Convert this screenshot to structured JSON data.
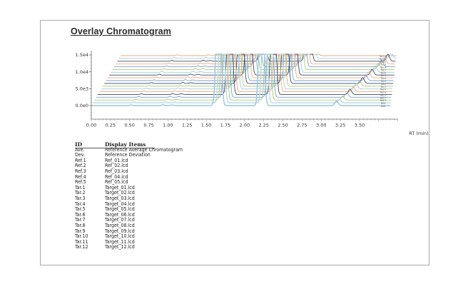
{
  "title": "Overlay Chromatogram",
  "chart_data": {
    "type": "line",
    "title": "Overlay Chromatogram",
    "xlabel": "RT (min)",
    "ylabel": "",
    "xlim": [
      0,
      4.0
    ],
    "ylim": [
      -2500,
      15000
    ],
    "x_ticks": [
      "0.00",
      "0.25",
      "0.50",
      "0.75",
      "1.00",
      "1.25",
      "1.50",
      "1.75",
      "2.00",
      "2.25",
      "2.50",
      "2.75",
      "3.00",
      "3.25",
      "3.50"
    ],
    "y_ticks": [
      "1.5e4",
      "1.0e4",
      "5.0e3",
      "0.0e0"
    ],
    "layout": "stacked-offset overlay (waterfall), each trace offset right and up",
    "grid": false,
    "series": [
      {
        "name": "Ave.",
        "color": "#9cc4dc",
        "peaks": [
          [
            1.66,
            "off-scale"
          ],
          [
            2.22,
            "off-scale"
          ],
          [
            3.2,
            1400
          ]
        ]
      },
      {
        "name": "Dev.",
        "color": "#b8d8e8",
        "peaks": [
          [
            1.68,
            "off-scale"
          ],
          [
            2.24,
            "off-scale"
          ],
          [
            3.22,
            900
          ]
        ]
      },
      {
        "name": "Ref.1",
        "color": "#a8c870",
        "peaks": [
          [
            1.69,
            "off-scale"
          ],
          [
            2.26,
            "off-scale"
          ],
          [
            3.24,
            1200
          ]
        ]
      },
      {
        "name": "Ref.2",
        "color": "#7aa0d0",
        "peaks": [
          [
            1.7,
            "off-scale"
          ],
          [
            2.27,
            "off-scale"
          ],
          [
            3.27,
            1300
          ]
        ]
      },
      {
        "name": "Ref.3",
        "color": "#3a4a6a",
        "peaks": [
          [
            1.72,
            "off-scale"
          ],
          [
            2.29,
            "off-scale"
          ],
          [
            3.29,
            1500
          ]
        ]
      },
      {
        "name": "Ref.4",
        "color": "#f0a878",
        "peaks": [
          [
            1.73,
            "off-scale"
          ],
          [
            2.31,
            "off-scale"
          ],
          [
            3.31,
            1400
          ]
        ]
      },
      {
        "name": "Ref.5",
        "color": "#a0c8e0",
        "peaks": [
          [
            1.75,
            "off-scale"
          ],
          [
            2.32,
            "off-scale"
          ],
          [
            3.33,
            1600
          ]
        ]
      },
      {
        "name": "Tar.1",
        "color": "#a8c870",
        "peaks": [
          [
            1.76,
            "off-scale"
          ],
          [
            2.34,
            "off-scale"
          ],
          [
            3.35,
            1500
          ]
        ]
      },
      {
        "name": "Tar.2",
        "color": "#3a4a6a",
        "peaks": [
          [
            1.78,
            "off-scale"
          ],
          [
            2.36,
            "off-scale"
          ],
          [
            3.37,
            1700
          ]
        ]
      },
      {
        "name": "Tar.3",
        "color": "#7aa0d0",
        "peaks": [
          [
            1.79,
            "off-scale"
          ],
          [
            2.37,
            "off-scale"
          ],
          [
            3.39,
            1600
          ]
        ]
      },
      {
        "name": "Tar.4",
        "color": "#f0a878",
        "peaks": [
          [
            1.81,
            "off-scale"
          ],
          [
            2.39,
            "off-scale"
          ],
          [
            3.41,
            1800
          ]
        ]
      },
      {
        "name": "Tar.5",
        "color": "#3a4a6a",
        "peaks": [
          [
            1.82,
            "off-scale"
          ],
          [
            2.41,
            "off-scale"
          ],
          [
            3.43,
            1700
          ]
        ]
      },
      {
        "name": "Tar.6",
        "color": "#a0c8e0",
        "peaks": [
          [
            1.84,
            "off-scale"
          ],
          [
            2.42,
            "off-scale"
          ],
          [
            3.45,
            1900
          ]
        ]
      },
      {
        "name": "Tar.7",
        "color": "#a8c870",
        "peaks": [
          [
            1.85,
            "off-scale"
          ],
          [
            2.44,
            "off-scale"
          ],
          [
            3.47,
            1800
          ]
        ]
      },
      {
        "name": "Tar.8",
        "color": "#7aa0d0",
        "peaks": [
          [
            1.87,
            "off-scale"
          ],
          [
            2.46,
            "off-scale"
          ],
          [
            3.49,
            2000
          ]
        ]
      },
      {
        "name": "Tar.9",
        "color": "#f0a878",
        "peaks": [
          [
            1.88,
            "off-scale"
          ],
          [
            2.47,
            "off-scale"
          ],
          [
            3.51,
            1900
          ]
        ]
      },
      {
        "name": "Tar.10",
        "color": "#3a4a6a",
        "peaks": [
          [
            1.9,
            "off-scale"
          ],
          [
            2.49,
            "off-scale"
          ],
          [
            3.53,
            2100
          ]
        ]
      },
      {
        "name": "Tar.11",
        "color": "#a0c8e0",
        "peaks": [
          [
            1.91,
            "off-scale"
          ],
          [
            2.51,
            "off-scale"
          ],
          [
            3.55,
            2000
          ]
        ]
      },
      {
        "name": "Tar.12",
        "color": "#f0a878",
        "peaks": [
          [
            1.93,
            "off-scale"
          ],
          [
            2.52,
            "off-scale"
          ],
          [
            3.76,
            2200
          ]
        ]
      }
    ]
  },
  "axis": {
    "x_label": "RT (min)",
    "x_ticks": [
      "0.00",
      "0.25",
      "0.50",
      "0.75",
      "1.00",
      "1.25",
      "1.50",
      "1.75",
      "2.00",
      "2.25",
      "2.50",
      "2.75",
      "3.00",
      "3.25",
      "3.50"
    ],
    "y_ticks": [
      "1.5e4",
      "1.0e4",
      "5.0e3",
      "0.0e0"
    ]
  },
  "table": {
    "headers": {
      "id": "ID",
      "items": "Display Items"
    },
    "rows": [
      {
        "id": "Ave.",
        "item": "Reference Average Chromatogram"
      },
      {
        "id": "Dev.",
        "item": "Reference Deviation"
      },
      {
        "id": "Ref.1",
        "item": "Ref_01.lcd"
      },
      {
        "id": "Ref.2",
        "item": "Ref_02.lcd"
      },
      {
        "id": "Ref.3",
        "item": "Ref_03.lcd"
      },
      {
        "id": "Ref.4",
        "item": "Ref_04.lcd"
      },
      {
        "id": "Ref.5",
        "item": "Ref_05.lcd"
      },
      {
        "id": "Tar.1",
        "item": "Target_01.lcd"
      },
      {
        "id": "Tar.2",
        "item": "Target_02.lcd"
      },
      {
        "id": "Tar.3",
        "item": "Target_03.lcd"
      },
      {
        "id": "Tar.4",
        "item": "Target_04.lcd"
      },
      {
        "id": "Tar.5",
        "item": "Target_05.lcd"
      },
      {
        "id": "Tar.6",
        "item": "Target_06.lcd"
      },
      {
        "id": "Tar.7",
        "item": "Target_07.lcd"
      },
      {
        "id": "Tar.8",
        "item": "Target_08.lcd"
      },
      {
        "id": "Tar.9",
        "item": "Target_09.lcd"
      },
      {
        "id": "Tar.10",
        "item": "Target_10.lcd"
      },
      {
        "id": "Tar.11",
        "item": "Target_11.lcd"
      },
      {
        "id": "Tar.12",
        "item": "Target_12.lcd"
      }
    ]
  }
}
